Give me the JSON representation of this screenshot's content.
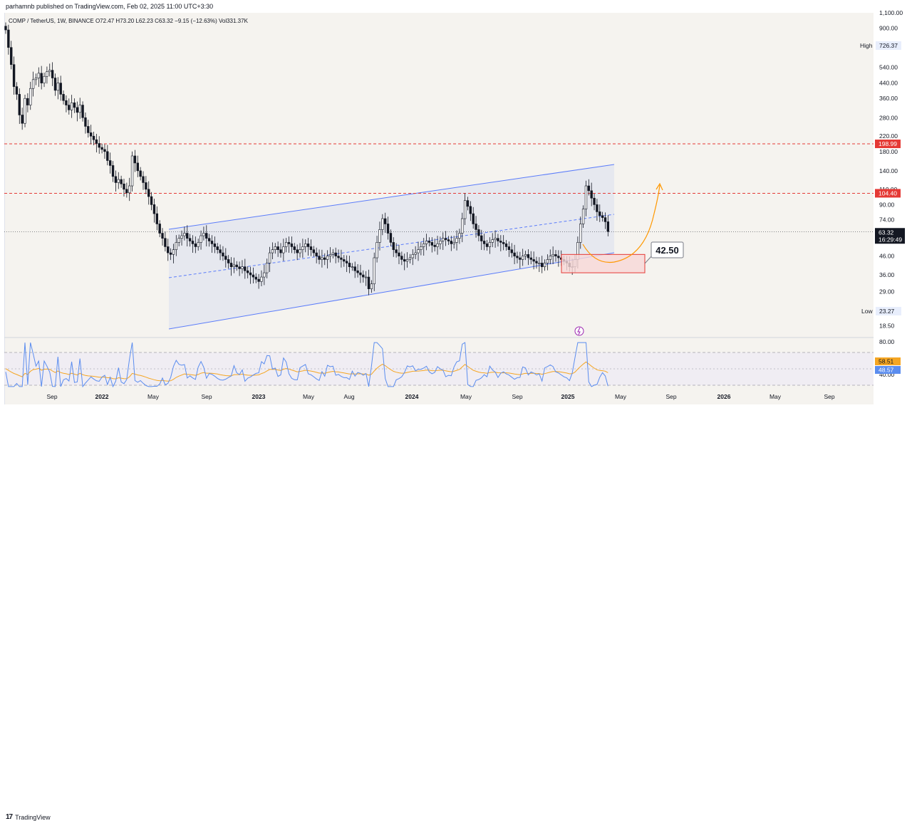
{
  "header": {
    "published": "parhamnb published on TradingView.com, Feb 02, 2025 11:00 UTC+3:30",
    "legend": "COMP / TetherUS, 1W, BINANCE  O72.47  H73.20  L62.23  C63.32  −9.15 (−12.63%)  Vol331.37K"
  },
  "footer": {
    "brand": "TradingView"
  },
  "colors": {
    "up": "#ffffff",
    "down": "#131722",
    "channel": "#5b7cfa",
    "channel_fill": "#dfe3f0",
    "resistance": "#e53935",
    "projection": "#ff9800",
    "rsi": "#5b8def",
    "rsi_ma": "#f5a623"
  },
  "chart_data": [
    {
      "type": "candlestick",
      "symbol": "COMP / TetherUS",
      "interval": "1W",
      "exchange": "BINANCE",
      "ohlc_last": {
        "open": 72.47,
        "high": 73.2,
        "low": 62.23,
        "close": 63.32,
        "change": "−9.15",
        "change_pct": "−12.63%"
      },
      "volume": "Vol331.37K",
      "price_scale": "log",
      "y_ticks": [
        "1,100.00",
        "900.00",
        "540.00",
        "440.00",
        "360.00",
        "280.00",
        "220.00",
        "180.00",
        "140.00",
        "110.00",
        "90.00",
        "74.00",
        "46.00",
        "36.00",
        "29.00",
        "23.27",
        "18.50"
      ],
      "x_ticks": [
        "Sep",
        "2022",
        "May",
        "Sep",
        "2023",
        "May",
        "Aug",
        "2024",
        "May",
        "Sep",
        "2025",
        "May",
        "Sep",
        "2026",
        "May",
        "Sep"
      ],
      "labels": {
        "high": {
          "text": "High",
          "value": "726.37"
        },
        "low": {
          "text": "Low",
          "value": "23.27"
        },
        "level_199": "198.99",
        "level_104": "104.40",
        "last_price": "63.32",
        "countdown": "16:29:49",
        "target": "42.50"
      },
      "horizontal_levels": [
        198.99,
        104.4
      ],
      "last_price": 63.32,
      "target_zone": {
        "low": 37,
        "high": 47,
        "label": "42.50"
      },
      "closes": [
        880,
        700,
        560,
        420,
        380,
        290,
        260,
        360,
        330,
        410,
        460,
        470,
        500,
        440,
        480,
        510,
        520,
        470,
        400,
        440,
        380,
        350,
        330,
        310,
        340,
        320,
        300,
        330,
        280,
        250,
        230,
        220,
        210,
        200,
        190,
        185,
        180,
        160,
        150,
        130,
        120,
        125,
        118,
        110,
        105,
        115,
        170,
        155,
        140,
        130,
        120,
        110,
        100,
        90,
        80,
        70,
        62,
        58,
        52,
        48,
        47,
        50,
        55,
        58,
        60,
        62,
        58,
        56,
        54,
        52,
        55,
        60,
        62,
        58,
        56,
        54,
        52,
        50,
        48,
        46,
        44,
        42,
        40,
        41,
        40,
        39,
        40,
        38,
        37,
        36,
        35,
        34,
        33,
        35,
        37,
        42,
        48,
        50,
        52,
        50,
        48,
        52,
        55,
        54,
        52,
        50,
        48,
        50,
        52,
        54,
        52,
        50,
        48,
        46,
        44,
        45,
        44,
        46,
        47,
        48,
        46,
        45,
        44,
        43,
        42,
        40,
        40,
        38,
        37,
        36,
        35,
        35,
        30,
        32,
        45,
        55,
        65,
        75,
        70,
        62,
        55,
        50,
        48,
        46,
        44,
        43,
        44,
        45,
        47,
        48,
        50,
        52,
        54,
        56,
        55,
        53,
        52,
        54,
        56,
        58,
        57,
        56,
        54,
        55,
        58,
        62,
        75,
        95,
        88,
        80,
        70,
        65,
        60,
        56,
        54,
        52,
        55,
        57,
        58,
        56,
        55,
        54,
        52,
        50,
        48,
        46,
        45,
        44,
        46,
        47,
        45,
        44,
        43,
        42,
        42,
        40,
        42,
        44,
        46,
        47,
        46,
        45,
        44,
        43,
        42,
        40,
        40,
        44,
        55,
        70,
        85,
        115,
        108,
        98,
        90,
        82,
        78,
        76,
        72,
        63.32
      ],
      "rsi_ticks": [
        "80.00",
        "40.00"
      ],
      "rsi_values": {
        "rsi": "48.57",
        "rsi_ma": "58.51"
      }
    }
  ]
}
